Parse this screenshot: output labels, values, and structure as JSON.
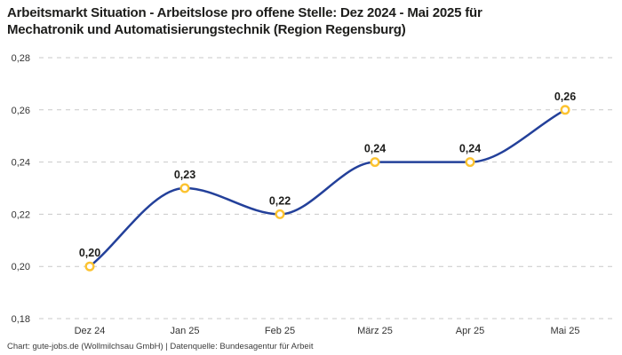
{
  "title": {
    "line1": "Arbeitsmarkt Situation - Arbeitslose pro offene Stelle: Dez 2024 - Mai 2025 für",
    "line2": "Mechatronik und Automatisierungstechnik (Region Regensburg)"
  },
  "footer": {
    "text": "Chart: gute-jobs.de (Wollmilchsau GmbH) | Datenquelle: Bundesagentur für Arbeit"
  },
  "chart_data": {
    "type": "line",
    "title": "Arbeitsmarkt Situation - Arbeitslose pro offene Stelle: Dez 2024 - Mai 2025 für Mechatronik und Automatisierungstechnik (Region Regensburg)",
    "categories": [
      "Dez 24",
      "Jan 25",
      "Feb 25",
      "März 25",
      "Apr 25",
      "Mai 25"
    ],
    "series": [
      {
        "name": "Arbeitslose pro offene Stelle",
        "values": [
          0.2,
          0.23,
          0.22,
          0.24,
          0.24,
          0.26
        ],
        "point_labels": [
          "0,20",
          "0,23",
          "0,22",
          "0,24",
          "0,24",
          "0,26"
        ]
      }
    ],
    "xlabel": "",
    "ylabel": "",
    "ylim": [
      0.18,
      0.28
    ],
    "y_ticks": [
      {
        "value": 0.28,
        "label": "0,28"
      },
      {
        "value": 0.26,
        "label": "0,26"
      },
      {
        "value": 0.24,
        "label": "0,24"
      },
      {
        "value": 0.22,
        "label": "0,22"
      },
      {
        "value": 0.2,
        "label": "0,20"
      },
      {
        "value": 0.18,
        "label": "0,18"
      }
    ],
    "grid": "horizontal-dashed",
    "legend_position": "none",
    "colors": {
      "line": "#23409a",
      "marker_ring": "#fcc330",
      "marker_fill": "#ffffff",
      "grid": "#c9c9c9",
      "point_label": "#1d1d1b",
      "axis_text": "#333333"
    }
  }
}
